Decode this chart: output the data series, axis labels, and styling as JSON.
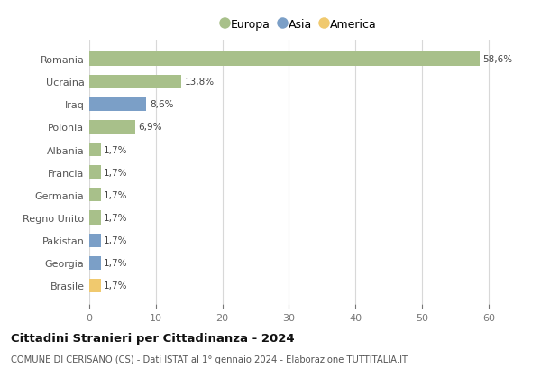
{
  "countries": [
    "Romania",
    "Ucraina",
    "Iraq",
    "Polonia",
    "Albania",
    "Francia",
    "Germania",
    "Regno Unito",
    "Pakistan",
    "Georgia",
    "Brasile"
  ],
  "values": [
    58.6,
    13.8,
    8.6,
    6.9,
    1.7,
    1.7,
    1.7,
    1.7,
    1.7,
    1.7,
    1.7
  ],
  "labels": [
    "58,6%",
    "13,8%",
    "8,6%",
    "6,9%",
    "1,7%",
    "1,7%",
    "1,7%",
    "1,7%",
    "1,7%",
    "1,7%",
    "1,7%"
  ],
  "continents": [
    "Europa",
    "Europa",
    "Asia",
    "Europa",
    "Europa",
    "Europa",
    "Europa",
    "Europa",
    "Asia",
    "Asia",
    "America"
  ],
  "colors": {
    "Europa": "#a8c08a",
    "Asia": "#7b9fc7",
    "America": "#f0c96e"
  },
  "legend_labels": [
    "Europa",
    "Asia",
    "America"
  ],
  "legend_colors": [
    "#a8c08a",
    "#7b9fc7",
    "#f0c96e"
  ],
  "xlim": [
    0,
    63
  ],
  "xticks": [
    0,
    10,
    20,
    30,
    40,
    50,
    60
  ],
  "title": "Cittadini Stranieri per Cittadinanza - 2024",
  "subtitle": "COMUNE DI CERISANO (CS) - Dati ISTAT al 1° gennaio 2024 - Elaborazione TUTTITALIA.IT",
  "background_color": "#ffffff",
  "grid_color": "#d8d8d8"
}
